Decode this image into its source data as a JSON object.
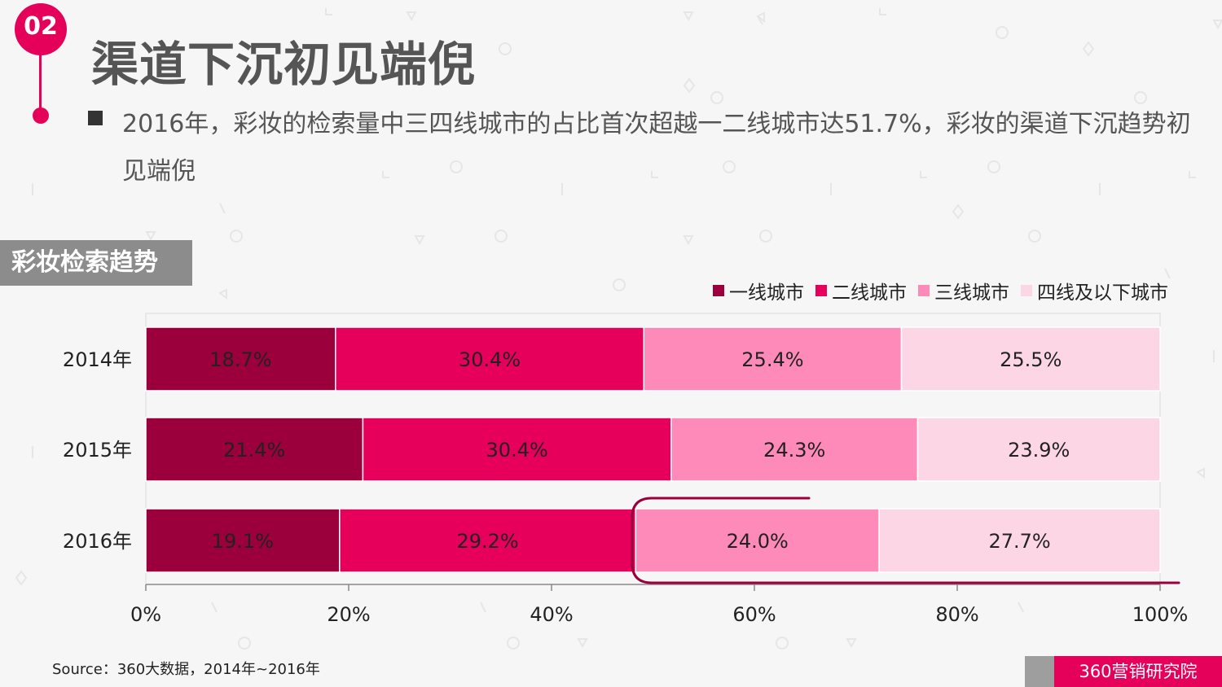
{
  "slide_number": "02",
  "title": "渠道下沉初见端倪",
  "description": "2016年，彩妆的检索量中三四线城市的占比首次超越一二线城市达51.7%，彩妆的渠道下沉趋势初见端倪",
  "section_label": "彩妆检索趋势",
  "source": "Source：360大数据，2014年~2016年",
  "brand": "360营销研究院",
  "chart_data": {
    "type": "bar",
    "orientation": "horizontal",
    "stacked": true,
    "categories": [
      "2014年",
      "2015年",
      "2016年"
    ],
    "series": [
      {
        "name": "一线城市",
        "color": "#9b003c",
        "values": [
          18.7,
          21.4,
          19.1
        ]
      },
      {
        "name": "二线城市",
        "color": "#e6005c",
        "values": [
          30.4,
          30.4,
          29.2
        ]
      },
      {
        "name": "三线城市",
        "color": "#fd8ab8",
        "values": [
          25.4,
          24.3,
          24.0
        ]
      },
      {
        "name": "四线及以下城市",
        "color": "#fdd6e6",
        "values": [
          25.5,
          23.9,
          27.7
        ]
      }
    ],
    "value_labels": [
      [
        "18.7%",
        "30.4%",
        "25.4%",
        "25.5%"
      ],
      [
        "21.4%",
        "30.4%",
        "24.3%",
        "23.9%"
      ],
      [
        "19.1%",
        "29.2%",
        "24.0%",
        "27.7%"
      ]
    ],
    "xlim": [
      0,
      100
    ],
    "xticks": [
      0,
      20,
      40,
      60,
      80,
      100
    ],
    "xtick_labels": [
      "0%",
      "20%",
      "40%",
      "60%",
      "80%",
      "100%"
    ],
    "grid": false,
    "legend_position": "top-right"
  }
}
